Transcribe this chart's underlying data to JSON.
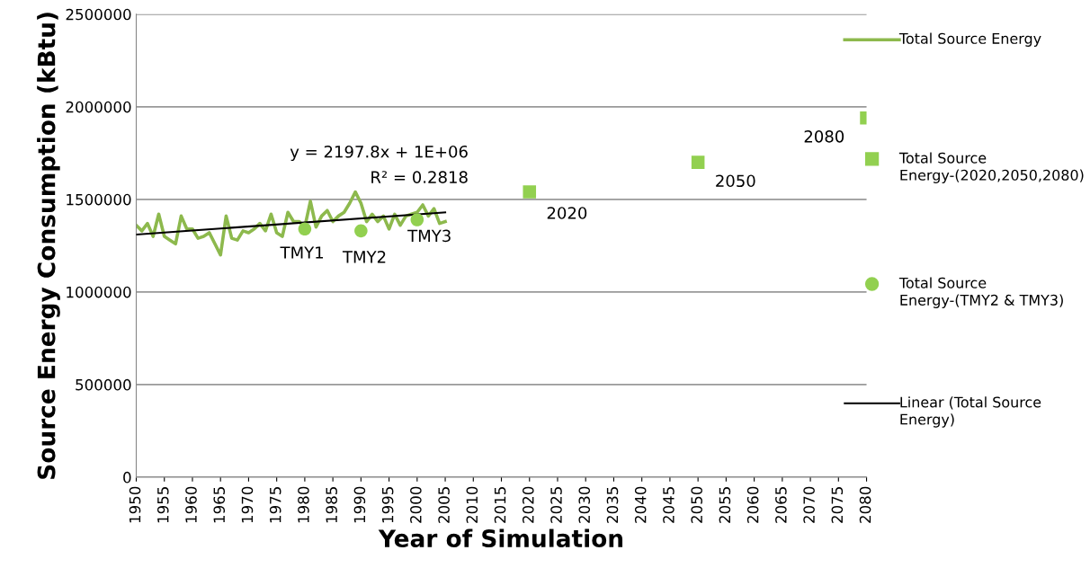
{
  "chart_data": {
    "type": "line",
    "xlabel": "Year of Simulation",
    "ylabel": "Source Energy Consumption (kBtu)",
    "xlim": [
      1950,
      2080
    ],
    "xticks": [
      1950,
      1955,
      1960,
      1965,
      1970,
      1975,
      1980,
      1985,
      1990,
      1995,
      2000,
      2005,
      2010,
      2015,
      2020,
      2025,
      2030,
      2035,
      2040,
      2045,
      2050,
      2055,
      2060,
      2065,
      2070,
      2075,
      2080
    ],
    "ylim": [
      0,
      2500000
    ],
    "yticks": [
      0,
      500000,
      1000000,
      1500000,
      2000000,
      2500000
    ],
    "grid": "y",
    "legend": "right",
    "series": [
      {
        "name": "Total Source Energy",
        "color": "#8db94d",
        "marker": "none",
        "x": [
          1950,
          1951,
          1952,
          1953,
          1954,
          1955,
          1956,
          1957,
          1958,
          1959,
          1960,
          1961,
          1962,
          1963,
          1964,
          1965,
          1966,
          1967,
          1968,
          1969,
          1970,
          1971,
          1972,
          1973,
          1974,
          1975,
          1976,
          1977,
          1978,
          1979,
          1980,
          1981,
          1982,
          1983,
          1984,
          1985,
          1986,
          1987,
          1988,
          1989,
          1990,
          1991,
          1992,
          1993,
          1994,
          1995,
          1996,
          1997,
          1998,
          1999,
          2000,
          2001,
          2002,
          2003,
          2004,
          2005
        ],
        "values": [
          1360000,
          1330000,
          1370000,
          1300000,
          1420000,
          1300000,
          1280000,
          1260000,
          1410000,
          1340000,
          1340000,
          1290000,
          1300000,
          1320000,
          1260000,
          1200000,
          1410000,
          1290000,
          1280000,
          1330000,
          1320000,
          1340000,
          1370000,
          1330000,
          1420000,
          1320000,
          1300000,
          1430000,
          1380000,
          1380000,
          1350000,
          1490000,
          1350000,
          1410000,
          1440000,
          1380000,
          1410000,
          1430000,
          1480000,
          1540000,
          1480000,
          1380000,
          1420000,
          1380000,
          1410000,
          1340000,
          1420000,
          1360000,
          1410000,
          1420000,
          1430000,
          1470000,
          1410000,
          1450000,
          1370000,
          1380000
        ]
      },
      {
        "name": "Total Source Energy-(2020,2050,2080)",
        "type": "scatter",
        "color": "#92d050",
        "marker": "square",
        "x": [
          2020,
          2050,
          2080
        ],
        "values": [
          1540000,
          1700000,
          1940000
        ]
      },
      {
        "name": "Total Source Energy-(TMY2 & TMY3)",
        "type": "scatter",
        "color": "#92d050",
        "marker": "circle",
        "x": [
          1980,
          1990,
          2000
        ],
        "values": [
          1340000,
          1330000,
          1390000
        ]
      },
      {
        "name": "Linear (Total Source Energy)",
        "type": "line",
        "color": "#000000",
        "marker": "none",
        "x": [
          1950,
          2005
        ],
        "values": [
          1310000,
          1430000
        ]
      }
    ],
    "annotations": [
      {
        "text": "TMY1",
        "x": 1980,
        "y": 1340000
      },
      {
        "text": "TMY2",
        "x": 1990,
        "y": 1330000
      },
      {
        "text": "TMY3",
        "x": 2000,
        "y": 1390000
      },
      {
        "text": "2020",
        "x": 2020,
        "y": 1540000
      },
      {
        "text": "2050",
        "x": 2050,
        "y": 1700000
      },
      {
        "text": "2080",
        "x": 2080,
        "y": 1940000
      },
      "y = 2197.8x + 1E+06",
      "R² = 0.2818"
    ]
  }
}
